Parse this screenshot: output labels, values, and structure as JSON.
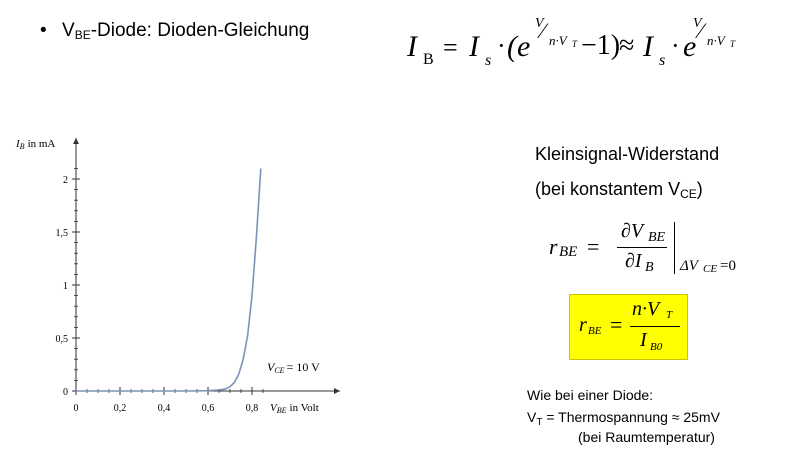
{
  "bullet": {
    "symbol": "•",
    "v": "V",
    "be": "BE",
    "text": "-Diode: Dioden-Gleichung"
  },
  "diode_equation": {
    "i": "I",
    "b": "B",
    "eq": "=",
    "s": "s",
    "dot": "·",
    "open": "(e",
    "exp_v": "V",
    "exp_slash": "⁄",
    "exp_den": "n·V",
    "exp_t": "T",
    "minus_one": "−1)",
    "approx": "≈",
    "e": "e"
  },
  "chart_data": {
    "type": "line",
    "xlabel_symbol": "V",
    "xlabel_sub": "BE",
    "xlabel_unit": "in Volt",
    "ylabel_symbol": "I",
    "ylabel_sub": "B",
    "ylabel_unit": "in mA",
    "xlim": [
      0,
      0.95
    ],
    "ylim": [
      0,
      2.25
    ],
    "x_ticks": [
      "0",
      "0,2",
      "0,4",
      "0,6",
      "0,8"
    ],
    "y_ticks": [
      "0",
      "0,5",
      "1",
      "1,5",
      "2"
    ],
    "annotation_symbol": "V",
    "annotation_sub": "CE",
    "annotation_value": "= 10 V",
    "series": [
      {
        "x": [
          0,
          0.1,
          0.2,
          0.3,
          0.4,
          0.5,
          0.6,
          0.65,
          0.68,
          0.7,
          0.72,
          0.74,
          0.76,
          0.78,
          0.8,
          0.82,
          0.84
        ],
        "y": [
          0,
          0,
          0,
          0,
          0,
          0,
          0.003,
          0.01,
          0.02,
          0.04,
          0.08,
          0.16,
          0.3,
          0.52,
          0.9,
          1.45,
          2.1
        ]
      }
    ],
    "grid": false,
    "line_color": "#7c93b8"
  },
  "right": {
    "title": "Kleinsignal-Widerstand",
    "sub_text": "(bei konstantem V",
    "sub_ce": "CE",
    "sub_close": ")",
    "r": "r",
    "be": "BE",
    "eq": "=",
    "partial_num": "∂V",
    "partial_den": "∂I",
    "num_sub": "BE",
    "den_sub": "B",
    "cond": "ΔV",
    "cond_sub": "CE",
    "cond_val": "=0"
  },
  "highlight": {
    "r": "r",
    "be": "BE",
    "eq": "=",
    "num": "n·V",
    "num_sub": "T",
    "den": "I",
    "den_sub": "B0",
    "color": "#ffff00"
  },
  "notes": {
    "line1": "Wie bei einer Diode:",
    "vt": "V",
    "t": "T",
    "line2": " = Thermospannung ≈ 25mV",
    "line3": "(bei Raumtemperatur)"
  }
}
